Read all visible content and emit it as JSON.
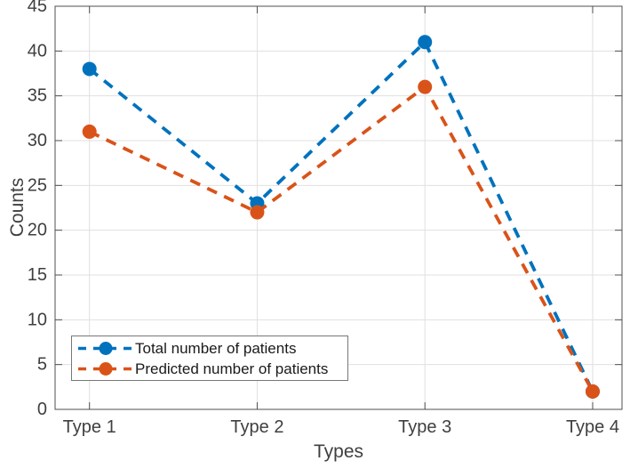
{
  "chart_data": {
    "type": "line",
    "title": "",
    "xlabel": "Types",
    "ylabel": "Counts",
    "categories": [
      "Type 1",
      "Type 2",
      "Type 3",
      "Type 4"
    ],
    "series": [
      {
        "name": "Total number of patients",
        "color": "#0072BD",
        "values": [
          38,
          23,
          41,
          2
        ],
        "line_style": "dashed",
        "marker": "filled-circle"
      },
      {
        "name": "Predicted number of patients",
        "color": "#D95319",
        "values": [
          31,
          22,
          36,
          2
        ],
        "line_style": "dashed",
        "marker": "filled-circle"
      }
    ],
    "ylim": [
      0,
      45
    ],
    "yticks": [
      0,
      5,
      10,
      15,
      20,
      25,
      30,
      35,
      40,
      45
    ],
    "grid": true,
    "legend_position": "lower-left",
    "colors": {
      "grid": "#e0e0e0",
      "axis": "#4f4f4f",
      "tick_label": "#3f3f3f",
      "background": "#ffffff",
      "legend_border": "#777777",
      "legend_text": "#1a1a1a"
    }
  }
}
